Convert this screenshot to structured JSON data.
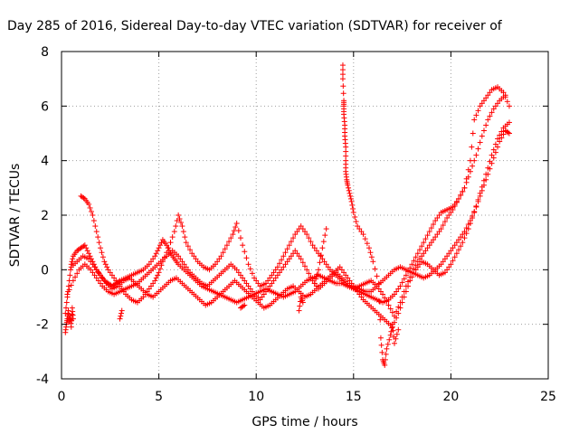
{
  "chart_data": {
    "type": "scatter",
    "title": "Day 285 of 2016, Sidereal Day-to-day VTEC variation (SDTVAR) for receiver of",
    "xlabel": "GPS time / hours",
    "ylabel": "SDTVAR / TECUs",
    "xlim": [
      0,
      25
    ],
    "ylim": [
      -4,
      8
    ],
    "xticks": [
      "0",
      "5",
      "10",
      "15",
      "20",
      "25"
    ],
    "yticks": [
      "-4",
      "-2",
      "0",
      "2",
      "4",
      "6",
      "8"
    ],
    "grid": true,
    "marker": "plus",
    "color": "#ff0000",
    "series": [
      {
        "x": [
          0.2,
          0.3,
          0.4,
          0.5,
          0.6,
          0.8,
          1.0,
          1.2,
          1.4,
          1.6,
          1.8,
          2.0,
          2.2,
          2.4,
          2.6,
          2.8,
          3.0,
          3.3,
          3.6,
          3.9,
          4.2,
          4.5,
          4.8,
          5.0,
          5.2,
          5.4,
          5.6,
          5.8,
          6.0,
          6.3,
          6.6,
          6.9,
          7.2,
          7.5,
          7.8,
          8.1,
          8.4,
          8.7,
          9.0,
          9.3,
          9.6,
          9.9,
          10.2,
          10.5,
          10.8,
          11.1,
          11.4,
          11.7,
          12.0,
          12.3,
          12.6,
          12.9,
          13.2,
          13.5,
          13.8,
          14.1,
          14.4,
          14.7,
          15.0,
          15.3,
          15.6,
          15.9,
          16.2,
          16.5,
          16.8,
          17.1,
          17.4,
          17.7,
          18.0,
          18.3,
          18.6,
          18.9,
          19.2,
          19.5,
          19.8,
          20.1,
          20.4,
          20.7,
          21.0,
          21.3,
          21.6,
          21.9,
          22.2,
          22.5,
          22.8,
          23.0
        ],
        "y": [
          -1.6,
          -1.0,
          -0.4,
          0.2,
          0.5,
          0.7,
          0.8,
          0.9,
          0.6,
          0.3,
          0.0,
          -0.2,
          -0.4,
          -0.5,
          -0.6,
          -0.5,
          -0.4,
          -0.3,
          -0.2,
          -0.1,
          0.0,
          0.2,
          0.5,
          0.8,
          1.1,
          0.9,
          0.6,
          0.4,
          0.2,
          0.0,
          -0.2,
          -0.4,
          -0.6,
          -0.7,
          -0.8,
          -0.9,
          -1.0,
          -1.1,
          -1.2,
          -1.1,
          -1.0,
          -0.9,
          -0.8,
          -0.7,
          -0.8,
          -0.9,
          -1.0,
          -0.9,
          -0.8,
          -0.6,
          -0.4,
          -0.3,
          -0.2,
          -0.3,
          -0.4,
          -0.5,
          -0.5,
          -0.6,
          -0.6,
          -0.7,
          -0.8,
          -0.8,
          -0.6,
          -0.4,
          -0.2,
          0.0,
          0.1,
          0.0,
          -0.1,
          -0.2,
          -0.3,
          -0.2,
          0.0,
          0.2,
          0.5,
          0.8,
          1.1,
          1.4,
          1.8,
          2.3,
          2.9,
          3.5,
          4.1,
          4.7,
          5.1,
          5.0
        ]
      },
      {
        "x": [
          1.0,
          1.2,
          1.4,
          1.6,
          1.8,
          2.0,
          2.2,
          2.4,
          2.7,
          3.0,
          3.3,
          3.6,
          3.9,
          4.2,
          4.5,
          4.8,
          5.0,
          5.2,
          5.5,
          5.8,
          6.0,
          6.2,
          6.4,
          6.7,
          7.0,
          7.3,
          7.6,
          7.9,
          8.2,
          8.5,
          8.8,
          9.0,
          9.3,
          9.6,
          9.9,
          10.2,
          10.5,
          10.8,
          11.1,
          11.4,
          11.7,
          12.0,
          12.3,
          12.6,
          12.9,
          13.2,
          13.5,
          13.8,
          14.1,
          14.4,
          14.7,
          15.0,
          15.3,
          15.6,
          15.9,
          16.2,
          16.5,
          16.8,
          17.1,
          17.4,
          17.7,
          18.0,
          18.3,
          18.6,
          18.9,
          19.2,
          19.5,
          19.8,
          20.1,
          20.4,
          20.7,
          21.0,
          21.2,
          21.5,
          21.8,
          22.1,
          22.4,
          22.7,
          23.0
        ],
        "y": [
          2.7,
          2.6,
          2.4,
          2.0,
          1.4,
          0.8,
          0.3,
          0.0,
          -0.3,
          -0.6,
          -0.9,
          -1.1,
          -1.2,
          -1.0,
          -0.7,
          -0.4,
          -0.1,
          0.3,
          0.8,
          1.4,
          2.0,
          1.6,
          1.0,
          0.6,
          0.3,
          0.1,
          0.0,
          0.2,
          0.5,
          0.9,
          1.3,
          1.7,
          0.9,
          0.2,
          -0.3,
          -0.6,
          -0.5,
          -0.2,
          0.1,
          0.5,
          0.9,
          1.3,
          1.6,
          1.3,
          0.9,
          0.6,
          0.3,
          0.0,
          -0.2,
          -0.4,
          -0.6,
          -0.7,
          -0.8,
          -0.9,
          -1.0,
          -1.1,
          -1.2,
          -1.1,
          -0.9,
          -0.6,
          -0.2,
          0.2,
          0.6,
          1.0,
          1.4,
          1.8,
          2.1,
          2.2,
          2.3,
          2.6,
          3.0,
          4.0,
          5.5,
          6.0,
          6.3,
          6.6,
          6.7,
          6.5,
          6.0
        ]
      },
      {
        "x": [
          0.5,
          0.8,
          1.1,
          1.4,
          1.7,
          2.0,
          2.3,
          2.6,
          2.9,
          3.2,
          3.5,
          3.8,
          4.1,
          4.4,
          4.7,
          5.0,
          5.3,
          5.6,
          5.9,
          6.2,
          6.5,
          6.8,
          7.1,
          7.4,
          7.7,
          8.0,
          8.3,
          8.6,
          8.9,
          9.2,
          9.5,
          9.8,
          10.1,
          10.4,
          10.7,
          11.0,
          11.3,
          11.6,
          11.9,
          12.2,
          12.5,
          12.8,
          13.1,
          13.4,
          13.7,
          14.0,
          14.3,
          14.6,
          14.9,
          15.2,
          15.5,
          15.8,
          16.1,
          16.4,
          16.7,
          17.0,
          17.3,
          17.6,
          17.9,
          18.2,
          18.5,
          18.8,
          19.1,
          19.4,
          19.7,
          20.0,
          20.3,
          20.6,
          20.9,
          21.2,
          21.5,
          21.8,
          22.1,
          22.4,
          22.7,
          23.0
        ],
        "y": [
          0.1,
          0.3,
          0.5,
          0.4,
          0.1,
          -0.2,
          -0.5,
          -0.7,
          -0.6,
          -0.4,
          -0.3,
          -0.5,
          -0.7,
          -0.9,
          -1.0,
          -0.8,
          -0.6,
          -0.4,
          -0.3,
          -0.5,
          -0.7,
          -0.9,
          -1.1,
          -1.3,
          -1.2,
          -1.0,
          -0.8,
          -0.6,
          -0.4,
          -0.6,
          -0.8,
          -1.0,
          -1.2,
          -1.4,
          -1.3,
          -1.1,
          -0.9,
          -0.7,
          -0.6,
          -0.8,
          -1.0,
          -0.9,
          -0.7,
          -0.5,
          -0.3,
          -0.1,
          0.1,
          -0.2,
          -0.5,
          -0.8,
          -1.1,
          -1.3,
          -1.5,
          -1.7,
          -1.9,
          -2.1,
          -1.6,
          -1.0,
          -0.4,
          0.0,
          0.3,
          0.2,
          0.0,
          -0.2,
          -0.1,
          0.2,
          0.6,
          1.0,
          1.5,
          2.1,
          2.8,
          3.5,
          4.2,
          4.8,
          5.2,
          5.4
        ]
      },
      {
        "x": [
          0.3,
          0.6,
          0.9,
          1.2,
          1.5,
          1.8,
          2.1,
          2.4,
          2.7,
          3.0,
          3.3,
          3.6,
          3.9,
          4.2,
          4.5,
          4.8,
          5.1,
          5.4,
          5.7,
          6.0,
          6.3,
          6.6,
          6.9,
          7.2,
          7.5,
          7.8,
          8.1,
          8.4,
          8.7,
          9.0,
          9.3,
          9.6,
          9.9,
          10.2,
          10.5,
          10.8,
          11.1,
          11.4,
          11.7,
          12.0,
          12.3,
          12.6,
          12.9,
          13.2,
          13.5,
          13.8,
          14.1,
          14.4,
          14.7,
          15.0,
          15.3,
          15.6,
          15.9,
          16.2,
          16.5,
          16.8,
          17.1,
          17.4,
          17.7,
          18.0,
          18.3,
          18.6,
          18.9,
          19.2,
          19.5,
          19.8,
          20.1,
          20.4,
          20.7,
          21.0,
          21.3,
          21.6,
          21.9,
          22.2,
          22.5,
          22.8
        ],
        "y": [
          -0.9,
          -0.4,
          0.0,
          0.2,
          0.0,
          -0.3,
          -0.6,
          -0.8,
          -0.9,
          -0.8,
          -0.7,
          -0.6,
          -0.5,
          -0.3,
          -0.1,
          0.1,
          0.3,
          0.5,
          0.7,
          0.5,
          0.2,
          -0.1,
          -0.3,
          -0.5,
          -0.6,
          -0.4,
          -0.2,
          0.0,
          0.2,
          0.0,
          -0.3,
          -0.6,
          -0.9,
          -1.1,
          -0.8,
          -0.5,
          -0.2,
          0.1,
          0.4,
          0.7,
          0.4,
          0.0,
          -0.4,
          -0.7,
          -0.5,
          -0.3,
          -0.1,
          -0.3,
          -0.5,
          -0.7,
          -0.6,
          -0.5,
          -0.4,
          -0.6,
          -0.9,
          -1.3,
          -1.7,
          -1.2,
          -0.6,
          -0.1,
          0.3,
          0.6,
          0.9,
          1.2,
          1.5,
          1.9,
          2.2,
          2.6,
          3.0,
          3.6,
          4.2,
          4.9,
          5.5,
          5.9,
          6.2,
          6.4
        ]
      },
      {
        "x": [
          0.2,
          0.25,
          0.3,
          0.35,
          0.4,
          0.45,
          0.5,
          0.55,
          0.6,
          3.0,
          3.1,
          9.2,
          9.4,
          12.2,
          12.3,
          12.4,
          13.0,
          13.2,
          13.4,
          13.6,
          14.45,
          14.45,
          14.5,
          14.5,
          14.5,
          14.55,
          14.55,
          14.6,
          14.6,
          14.6,
          14.65,
          14.7,
          14.8,
          14.9,
          15.0,
          15.2,
          15.5,
          15.8,
          16.0,
          16.3,
          16.4,
          16.5,
          16.6,
          16.7,
          16.9,
          17.0,
          17.1,
          17.3
        ],
        "y": [
          -2.3,
          -2.0,
          -1.8,
          -1.5,
          -1.9,
          -1.7,
          -2.1,
          -1.4,
          -1.8,
          -1.8,
          -1.5,
          -1.4,
          -1.3,
          -1.5,
          -1.0,
          -1.2,
          -0.5,
          0.0,
          0.8,
          1.5,
          7.5,
          7.0,
          6.2,
          6.0,
          5.7,
          5.3,
          4.9,
          4.5,
          4.0,
          3.6,
          3.3,
          3.1,
          2.8,
          2.5,
          2.1,
          1.6,
          1.3,
          0.8,
          0.3,
          -0.5,
          -2.5,
          -3.3,
          -3.5,
          -2.9,
          -2.4,
          -2.0,
          -2.7,
          -2.2
        ]
      }
    ]
  }
}
